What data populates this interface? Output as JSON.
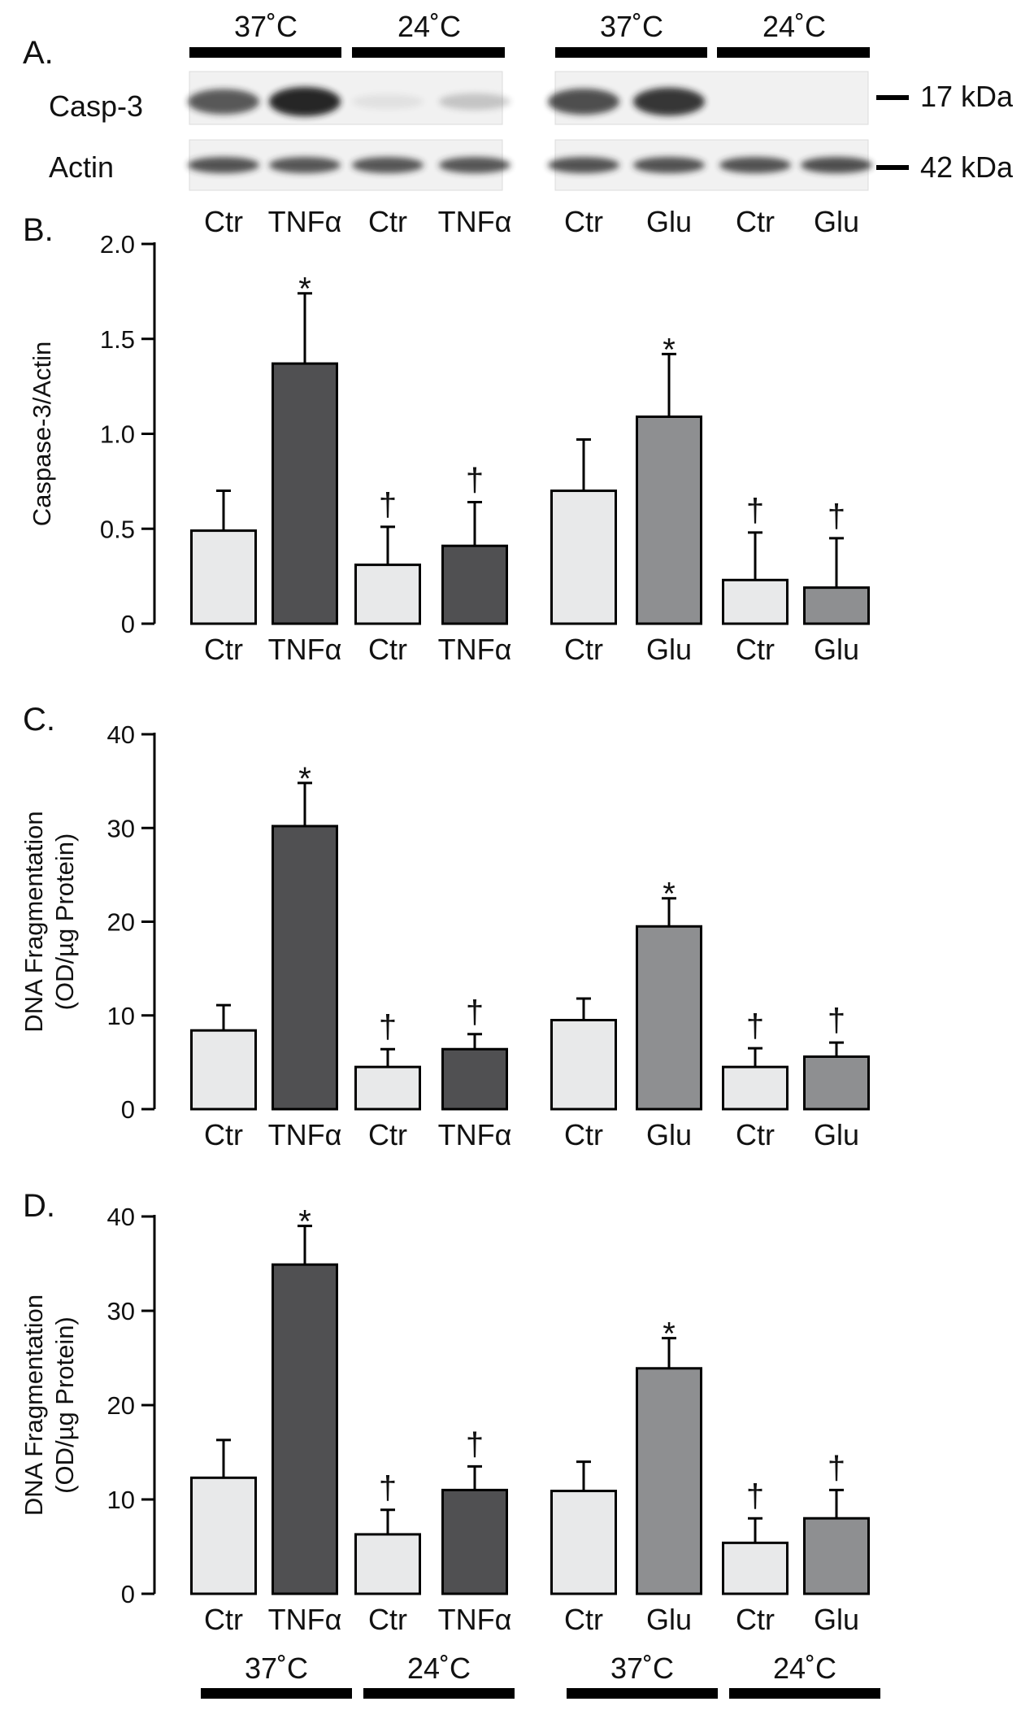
{
  "panel_letters": [
    "A.",
    "B.",
    "C.",
    "D."
  ],
  "temperatures": [
    "37˚C",
    "24˚C",
    "37˚C",
    "24˚C"
  ],
  "blot": {
    "rows": [
      "Casp-3",
      "Actin"
    ],
    "markers": [
      "17 kDa",
      "42 kDa"
    ],
    "lanes": [
      "Ctr",
      "TNFα",
      "Ctr",
      "TNFα",
      "Ctr",
      "Glu",
      "Ctr",
      "Glu"
    ],
    "casp3_band_intensity": [
      0.75,
      1.0,
      0.08,
      0.22,
      0.8,
      0.92,
      0.0,
      0.0
    ],
    "actin_band_intensity": [
      0.8,
      0.78,
      0.78,
      0.78,
      0.8,
      0.8,
      0.8,
      0.82
    ]
  },
  "colors": {
    "ctr": "#e8e9ea",
    "tnf": "#505052",
    "glu": "#8e8f91"
  },
  "chart_data": [
    {
      "type": "bar",
      "panel": "B.",
      "ylabel": "Caspase-3/Actin",
      "ylim": [
        0,
        2.0
      ],
      "yticks": [
        "0",
        "0.5",
        "1.0",
        "1.5",
        "2.0"
      ],
      "categories": [
        "Ctr",
        "TNFα",
        "Ctr",
        "TNFα",
        "Ctr",
        "Glu",
        "Ctr",
        "Glu"
      ],
      "values": [
        0.49,
        1.37,
        0.31,
        0.41,
        0.7,
        1.09,
        0.23,
        0.19
      ],
      "errors": [
        0.21,
        0.37,
        0.2,
        0.23,
        0.27,
        0.33,
        0.25,
        0.26
      ],
      "markers": [
        "",
        "*",
        "†",
        "†",
        "",
        "*",
        "†",
        "†"
      ],
      "groups": [
        "ctr",
        "tnf",
        "ctr",
        "tnf",
        "ctr",
        "glu",
        "ctr",
        "glu"
      ]
    },
    {
      "type": "bar",
      "panel": "C.",
      "ylabel": "DNA Fragmentation (OD/µg Protein)",
      "ylabel_lines": [
        "DNA Fragmentation",
        "(OD/µg Protein)"
      ],
      "ylim": [
        0,
        40
      ],
      "yticks": [
        "0",
        "10",
        "20",
        "30",
        "40"
      ],
      "categories": [
        "Ctr",
        "TNFα",
        "Ctr",
        "TNFα",
        "Ctr",
        "Glu",
        "Ctr",
        "Glu"
      ],
      "values": [
        8.4,
        30.2,
        4.5,
        6.4,
        9.5,
        19.5,
        4.5,
        5.6
      ],
      "errors": [
        2.7,
        4.6,
        1.9,
        1.6,
        2.3,
        3.0,
        2.0,
        1.5
      ],
      "markers": [
        "",
        "*",
        "†",
        "†",
        "",
        "*",
        "†",
        "†"
      ],
      "groups": [
        "ctr",
        "tnf",
        "ctr",
        "tnf",
        "ctr",
        "glu",
        "ctr",
        "glu"
      ]
    },
    {
      "type": "bar",
      "panel": "D.",
      "ylabel": "DNA Fragmentation (OD/µg Protein)",
      "ylabel_lines": [
        "DNA Fragmentation",
        "(OD/µg Protein)"
      ],
      "ylim": [
        0,
        40
      ],
      "yticks": [
        "0",
        "10",
        "20",
        "30",
        "40"
      ],
      "categories": [
        "Ctr",
        "TNFα",
        "Ctr",
        "TNFα",
        "Ctr",
        "Glu",
        "Ctr",
        "Glu"
      ],
      "values": [
        12.3,
        34.9,
        6.3,
        11.0,
        10.9,
        23.9,
        5.4,
        8.0
      ],
      "errors": [
        4.0,
        4.1,
        2.6,
        2.5,
        3.1,
        3.2,
        2.6,
        3.0
      ],
      "markers": [
        "",
        "*",
        "†",
        "†",
        "",
        "*",
        "†",
        "†"
      ],
      "groups": [
        "ctr",
        "tnf",
        "ctr",
        "tnf",
        "ctr",
        "glu",
        "ctr",
        "glu"
      ],
      "xgroups": [
        "37˚C",
        "24˚C",
        "37˚C",
        "24˚C"
      ]
    }
  ]
}
